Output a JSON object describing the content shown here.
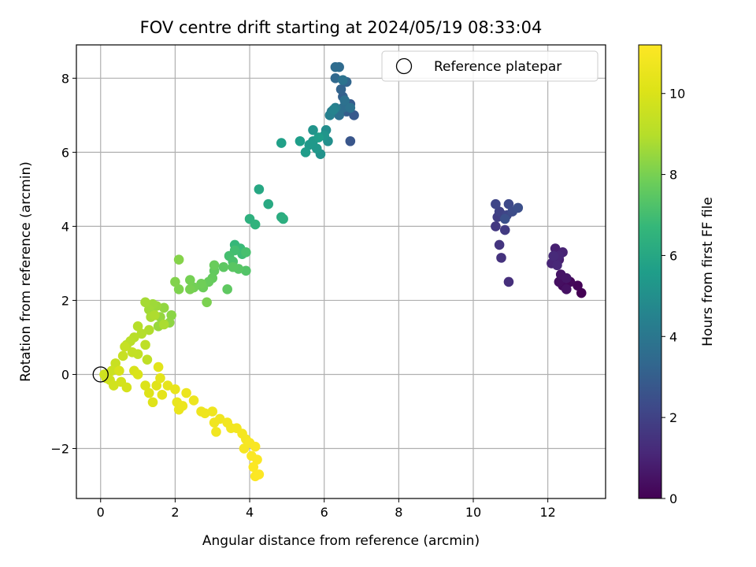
{
  "chart_data": {
    "type": "scatter",
    "title": "FOV centre drift starting at 2024/05/19 08:33:04",
    "xlabel": "Angular distance from reference (arcmin)",
    "ylabel": "Rotation from reference (arcmin)",
    "xlim": [
      -0.65,
      13.55
    ],
    "ylim": [
      -3.35,
      8.9
    ],
    "xticks": [
      0,
      2,
      4,
      6,
      8,
      10,
      12
    ],
    "yticks": [
      -2,
      0,
      2,
      4,
      6,
      8
    ],
    "tick_labels_x": [
      "0",
      "2",
      "4",
      "6",
      "8",
      "10",
      "12"
    ],
    "tick_labels_y": [
      "−2",
      "0",
      "2",
      "4",
      "6",
      "8"
    ],
    "grid": true,
    "legend": {
      "placement": "top-right",
      "entries": [
        "Reference platepar"
      ]
    },
    "reference_point": {
      "x": 0,
      "y": 0
    },
    "colorbar": {
      "label": "Hours from first FF file",
      "range": [
        0,
        11.2
      ],
      "ticks": [
        0,
        2,
        4,
        6,
        8,
        10
      ],
      "tick_labels": [
        "0",
        "2",
        "4",
        "6",
        "8",
        "10"
      ],
      "colormap": "viridis"
    },
    "points": [
      [
        12.9,
        2.2,
        0.0
      ],
      [
        12.8,
        2.4,
        0.1
      ],
      [
        12.6,
        2.5,
        0.2
      ],
      [
        12.4,
        2.4,
        0.3
      ],
      [
        12.3,
        2.5,
        0.4
      ],
      [
        12.5,
        2.3,
        0.5
      ],
      [
        12.35,
        2.7,
        0.55
      ],
      [
        12.5,
        2.6,
        0.6
      ],
      [
        12.2,
        3.0,
        0.7
      ],
      [
        12.3,
        3.1,
        0.8
      ],
      [
        12.2,
        3.4,
        0.9
      ],
      [
        12.4,
        3.3,
        1.0
      ],
      [
        12.1,
        3.0,
        1.05
      ],
      [
        12.3,
        3.2,
        1.1
      ],
      [
        12.25,
        2.95,
        1.15
      ],
      [
        12.15,
        3.2,
        1.2
      ],
      [
        10.95,
        2.5,
        1.35
      ],
      [
        10.75,
        3.15,
        1.45
      ],
      [
        10.7,
        3.5,
        1.55
      ],
      [
        10.6,
        4.0,
        1.65
      ],
      [
        10.85,
        3.9,
        1.75
      ],
      [
        10.65,
        4.25,
        1.85
      ],
      [
        10.8,
        4.3,
        1.95
      ],
      [
        10.7,
        4.4,
        2.0
      ],
      [
        10.6,
        4.6,
        2.1
      ],
      [
        10.9,
        4.3,
        2.15
      ],
      [
        10.95,
        4.6,
        2.25
      ],
      [
        11.05,
        4.4,
        2.35
      ],
      [
        11.2,
        4.5,
        2.45
      ],
      [
        10.85,
        4.2,
        2.5
      ],
      [
        6.7,
        6.3,
        2.7
      ],
      [
        6.8,
        7.0,
        2.8
      ],
      [
        6.7,
        7.3,
        2.9
      ],
      [
        6.6,
        7.1,
        3.0
      ],
      [
        6.5,
        7.5,
        3.1
      ],
      [
        6.45,
        7.7,
        3.2
      ],
      [
        6.6,
        7.9,
        3.3
      ],
      [
        6.3,
        8.0,
        3.4
      ],
      [
        6.4,
        8.3,
        3.5
      ],
      [
        6.3,
        8.3,
        3.55
      ],
      [
        6.5,
        7.2,
        3.6
      ],
      [
        6.4,
        7.0,
        3.7
      ],
      [
        6.55,
        7.4,
        3.75
      ],
      [
        6.7,
        7.2,
        3.8
      ],
      [
        6.5,
        7.95,
        3.85
      ],
      [
        6.2,
        7.1,
        4.1
      ],
      [
        6.3,
        7.2,
        4.3
      ],
      [
        6.15,
        7.0,
        4.4
      ],
      [
        6.25,
        7.15,
        4.5
      ],
      [
        6.05,
        6.6,
        4.9
      ],
      [
        6.1,
        6.3,
        5.0
      ],
      [
        5.9,
        5.95,
        5.1
      ],
      [
        5.7,
        6.6,
        5.2
      ],
      [
        6.0,
        6.45,
        5.25
      ],
      [
        5.8,
        6.1,
        5.3
      ],
      [
        5.7,
        6.3,
        5.35
      ],
      [
        5.6,
        6.2,
        5.4
      ],
      [
        5.5,
        6.0,
        5.5
      ],
      [
        5.85,
        6.4,
        5.55
      ],
      [
        5.35,
        6.3,
        5.6
      ],
      [
        4.85,
        6.25,
        5.7
      ],
      [
        4.25,
        5.0,
        6.0
      ],
      [
        4.5,
        4.6,
        6.1
      ],
      [
        4.85,
        4.25,
        6.2
      ],
      [
        4.9,
        4.2,
        6.3
      ],
      [
        4.0,
        4.2,
        6.4
      ],
      [
        4.15,
        4.05,
        6.5
      ],
      [
        3.6,
        3.5,
        6.7
      ],
      [
        3.75,
        3.4,
        6.8
      ],
      [
        3.8,
        3.25,
        6.9
      ],
      [
        3.6,
        3.35,
        7.0
      ],
      [
        3.45,
        3.2,
        7.05
      ],
      [
        3.9,
        3.3,
        7.1
      ],
      [
        3.55,
        3.05,
        7.15
      ],
      [
        3.9,
        2.8,
        7.3
      ],
      [
        3.7,
        2.85,
        7.4
      ],
      [
        3.55,
        2.9,
        7.45
      ],
      [
        3.3,
        2.9,
        7.5
      ],
      [
        3.4,
        2.3,
        7.55
      ],
      [
        3.05,
        2.8,
        7.6
      ],
      [
        3.0,
        2.6,
        7.65
      ],
      [
        2.9,
        2.5,
        7.7
      ],
      [
        3.05,
        2.95,
        7.75
      ],
      [
        2.75,
        2.35,
        7.8
      ],
      [
        2.7,
        2.45,
        7.85
      ],
      [
        2.5,
        2.35,
        7.9
      ],
      [
        2.4,
        2.55,
        7.95
      ],
      [
        2.4,
        2.3,
        8.0
      ],
      [
        2.85,
        1.95,
        8.05
      ],
      [
        2.1,
        2.3,
        8.1
      ],
      [
        2.0,
        2.5,
        8.15
      ],
      [
        2.1,
        3.1,
        8.2
      ],
      [
        1.9,
        1.6,
        8.3
      ],
      [
        1.85,
        1.4,
        8.35
      ],
      [
        1.7,
        1.8,
        8.4
      ],
      [
        1.6,
        1.55,
        8.45
      ],
      [
        1.55,
        1.3,
        8.5
      ],
      [
        1.5,
        1.85,
        8.55
      ],
      [
        1.4,
        1.9,
        8.6
      ],
      [
        1.3,
        1.75,
        8.65
      ],
      [
        1.2,
        1.95,
        8.7
      ],
      [
        1.35,
        1.55,
        8.75
      ],
      [
        1.7,
        1.35,
        8.8
      ],
      [
        1.45,
        1.6,
        8.85
      ],
      [
        1.3,
        1.2,
        8.9
      ],
      [
        1.1,
        1.1,
        8.95
      ],
      [
        1.0,
        1.3,
        9.0
      ],
      [
        0.9,
        1.0,
        9.05
      ],
      [
        0.8,
        0.9,
        9.1
      ],
      [
        0.7,
        0.8,
        9.15
      ],
      [
        1.2,
        0.8,
        9.2
      ],
      [
        1.25,
        0.4,
        9.25
      ],
      [
        1.0,
        0.55,
        9.3
      ],
      [
        0.85,
        0.6,
        9.35
      ],
      [
        0.65,
        0.75,
        9.4
      ],
      [
        0.6,
        0.5,
        9.45
      ],
      [
        0.4,
        0.3,
        9.5
      ],
      [
        0.3,
        0.1,
        9.55
      ],
      [
        0.15,
        -0.1,
        9.6
      ],
      [
        0.1,
        0.0,
        9.65
      ],
      [
        0.25,
        -0.15,
        9.7
      ],
      [
        0.35,
        -0.3,
        9.75
      ],
      [
        0.55,
        -0.2,
        9.8
      ],
      [
        0.7,
        -0.35,
        9.85
      ],
      [
        0.5,
        0.1,
        9.9
      ],
      [
        0.9,
        0.1,
        9.95
      ],
      [
        1.0,
        0.0,
        10.0
      ],
      [
        1.2,
        -0.3,
        10.05
      ],
      [
        1.3,
        -0.5,
        10.1
      ],
      [
        1.4,
        -0.75,
        10.15
      ],
      [
        1.5,
        -0.3,
        10.2
      ],
      [
        1.55,
        0.2,
        10.25
      ],
      [
        1.6,
        -0.1,
        10.3
      ],
      [
        1.65,
        -0.55,
        10.35
      ],
      [
        1.8,
        -0.3,
        10.4
      ],
      [
        2.0,
        -0.4,
        10.45
      ],
      [
        2.05,
        -0.75,
        10.5
      ],
      [
        2.1,
        -0.95,
        10.55
      ],
      [
        2.2,
        -0.85,
        10.6
      ],
      [
        2.3,
        -0.5,
        10.62
      ],
      [
        2.5,
        -0.7,
        10.65
      ],
      [
        2.7,
        -1.0,
        10.68
      ],
      [
        2.8,
        -1.05,
        10.7
      ],
      [
        3.0,
        -1.0,
        10.72
      ],
      [
        3.05,
        -1.3,
        10.74
      ],
      [
        3.2,
        -1.2,
        10.76
      ],
      [
        3.1,
        -1.55,
        10.78
      ],
      [
        3.4,
        -1.3,
        10.8
      ],
      [
        3.5,
        -1.45,
        10.82
      ],
      [
        3.65,
        -1.45,
        10.85
      ],
      [
        3.8,
        -1.6,
        10.88
      ],
      [
        3.9,
        -1.75,
        10.9
      ],
      [
        3.85,
        -2.0,
        10.95
      ],
      [
        4.0,
        -1.85,
        11.0
      ],
      [
        4.15,
        -1.95,
        11.05
      ],
      [
        4.05,
        -2.2,
        11.08
      ],
      [
        4.2,
        -2.3,
        11.1
      ],
      [
        4.1,
        -2.5,
        11.12
      ],
      [
        4.15,
        -2.75,
        11.14
      ],
      [
        4.25,
        -2.7,
        11.16
      ]
    ]
  }
}
